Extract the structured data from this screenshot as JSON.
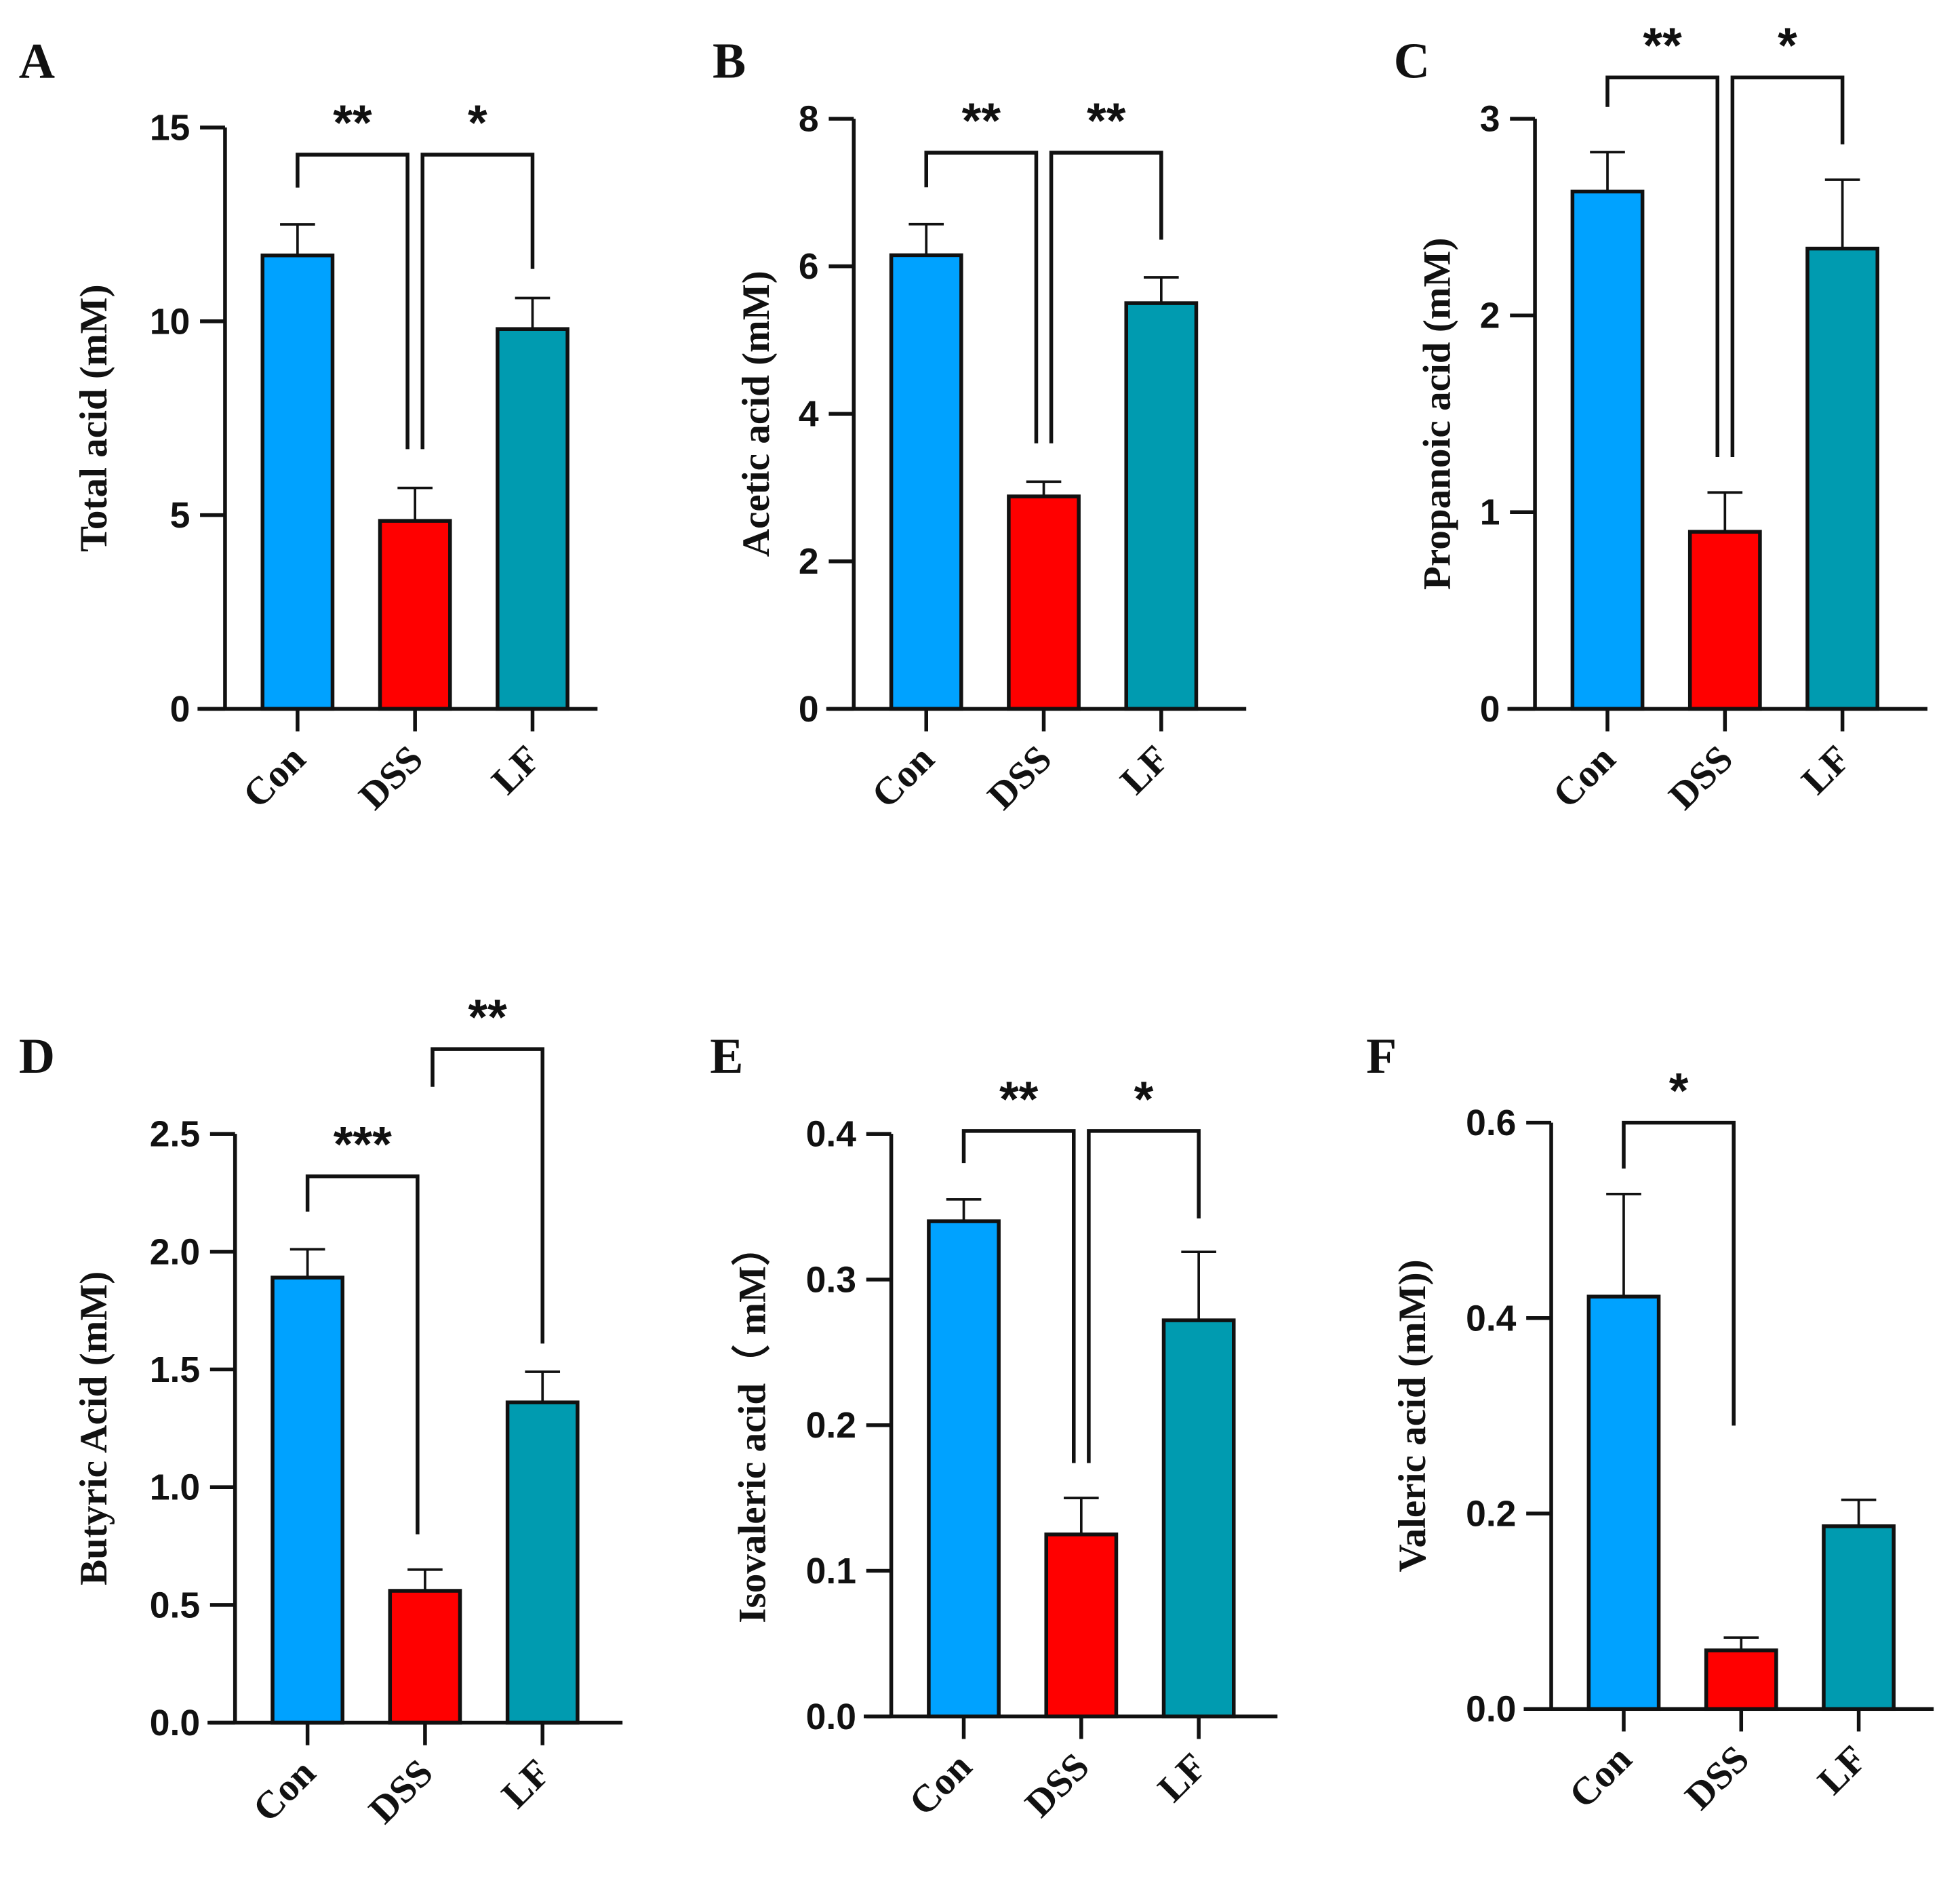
{
  "chart_data": [
    {
      "type": "bar",
      "panel": "A",
      "ylabel": "Total acid (mM)",
      "categories": [
        "Con",
        "DSS",
        "LF"
      ],
      "values": [
        11.7,
        4.85,
        9.8
      ],
      "errors": [
        0.8,
        0.85,
        0.8
      ],
      "ylim": [
        0,
        15
      ],
      "yticks": [
        "0",
        "5",
        "10",
        "15"
      ],
      "ytick_values": [
        0,
        5,
        10,
        15
      ],
      "colors": [
        "#00a2ff",
        "#ff0000",
        "#009bb0"
      ],
      "significance": [
        {
          "from": 0,
          "to": 1,
          "label": "**",
          "level": 14.3,
          "leg_from": 13.45,
          "leg_to": 6.7
        },
        {
          "from": 1,
          "to": 2,
          "label": "*",
          "level": 14.3,
          "leg_from": 6.7,
          "leg_to": 11.35
        }
      ]
    },
    {
      "type": "bar",
      "panel": "B",
      "ylabel": "Acetic acid (mM)",
      "categories": [
        "Con",
        "DSS",
        "LF"
      ],
      "values": [
        6.15,
        2.88,
        5.5
      ],
      "errors": [
        0.42,
        0.2,
        0.35
      ],
      "ylim": [
        0,
        8
      ],
      "yticks": [
        "0",
        "2",
        "4",
        "6",
        "8"
      ],
      "ytick_values": [
        0,
        2,
        4,
        6,
        8
      ],
      "colors": [
        "#00a2ff",
        "#ff0000",
        "#009bb0"
      ],
      "significance": [
        {
          "from": 0,
          "to": 1,
          "label": "**",
          "level": 7.54,
          "leg_from": 7.07,
          "leg_to": 3.6
        },
        {
          "from": 1,
          "to": 2,
          "label": "**",
          "level": 7.54,
          "leg_from": 3.6,
          "leg_to": 6.36
        }
      ]
    },
    {
      "type": "bar",
      "panel": "C",
      "ylabel": "Propanoic acid (mM)",
      "categories": [
        "Con",
        "DSS",
        "LF"
      ],
      "values": [
        2.63,
        0.9,
        2.34
      ],
      "errors": [
        0.2,
        0.2,
        0.35
      ],
      "ylim": [
        0,
        3
      ],
      "yticks": [
        "0",
        "1",
        "2",
        "3"
      ],
      "ytick_values": [
        0,
        1,
        2,
        3
      ],
      "colors": [
        "#00a2ff",
        "#ff0000",
        "#009bb0"
      ],
      "significance": [
        {
          "from": 0,
          "to": 1,
          "label": "**",
          "level": 3.21,
          "leg_from": 3.06,
          "leg_to": 1.28
        },
        {
          "from": 1,
          "to": 2,
          "label": "*",
          "level": 3.21,
          "leg_from": 1.28,
          "leg_to": 2.87
        }
      ]
    },
    {
      "type": "bar",
      "panel": "D",
      "ylabel": "Butyric Acid (mM)",
      "categories": [
        "Con",
        "DSS",
        "LF"
      ],
      "values": [
        1.89,
        0.56,
        1.36
      ],
      "errors": [
        0.12,
        0.09,
        0.13
      ],
      "ylim": [
        0,
        2.5
      ],
      "yticks": [
        "0.0",
        "0.5",
        "1.0",
        "1.5",
        "2.0",
        "2.5"
      ],
      "ytick_values": [
        0,
        0.5,
        1,
        1.5,
        2,
        2.5
      ],
      "colors": [
        "#00a2ff",
        "#ff0000",
        "#009bb0"
      ],
      "significance": [
        {
          "from": 0,
          "to": 1,
          "label": "***",
          "level": 2.32,
          "leg_from": 2.17,
          "leg_to": 0.8
        },
        {
          "from": 1,
          "to": 2,
          "label": "**",
          "level": 2.86,
          "leg_from": 2.7,
          "leg_to": 1.61
        }
      ]
    },
    {
      "type": "bar",
      "panel": "E",
      "ylabel": "Isovaleric acid（ mM）",
      "categories": [
        "Con",
        "DSS",
        "LF"
      ],
      "values": [
        0.34,
        0.125,
        0.272
      ],
      "errors": [
        0.015,
        0.025,
        0.047
      ],
      "ylim": [
        0,
        0.4
      ],
      "yticks": [
        "0.0",
        "0.1",
        "0.2",
        "0.3",
        "0.4"
      ],
      "ytick_values": [
        0,
        0.1,
        0.2,
        0.3,
        0.4
      ],
      "colors": [
        "#00a2ff",
        "#ff0000",
        "#009bb0"
      ],
      "significance": [
        {
          "from": 0,
          "to": 1,
          "label": "**",
          "level": 0.402,
          "leg_from": 0.38,
          "leg_to": 0.174
        },
        {
          "from": 1,
          "to": 2,
          "label": "*",
          "level": 0.402,
          "leg_from": 0.174,
          "leg_to": 0.342
        }
      ]
    },
    {
      "type": "bar",
      "panel": "F",
      "ylabel": "Valeric acid (mM))",
      "categories": [
        "Con",
        "DSS",
        "LF"
      ],
      "values": [
        0.422,
        0.06,
        0.187
      ],
      "errors": [
        0.105,
        0.013,
        0.027
      ],
      "ylim": [
        0,
        0.6
      ],
      "yticks": [
        "0.0",
        "0.2",
        "0.4",
        "0.6"
      ],
      "ytick_values": [
        0,
        0.2,
        0.4,
        0.6
      ],
      "colors": [
        "#00a2ff",
        "#ff0000",
        "#009bb0"
      ],
      "significance": [
        {
          "from": 0,
          "to": 1,
          "label": "*",
          "level": 0.6,
          "leg_from": 0.553,
          "leg_to": 0.29
        }
      ]
    }
  ]
}
